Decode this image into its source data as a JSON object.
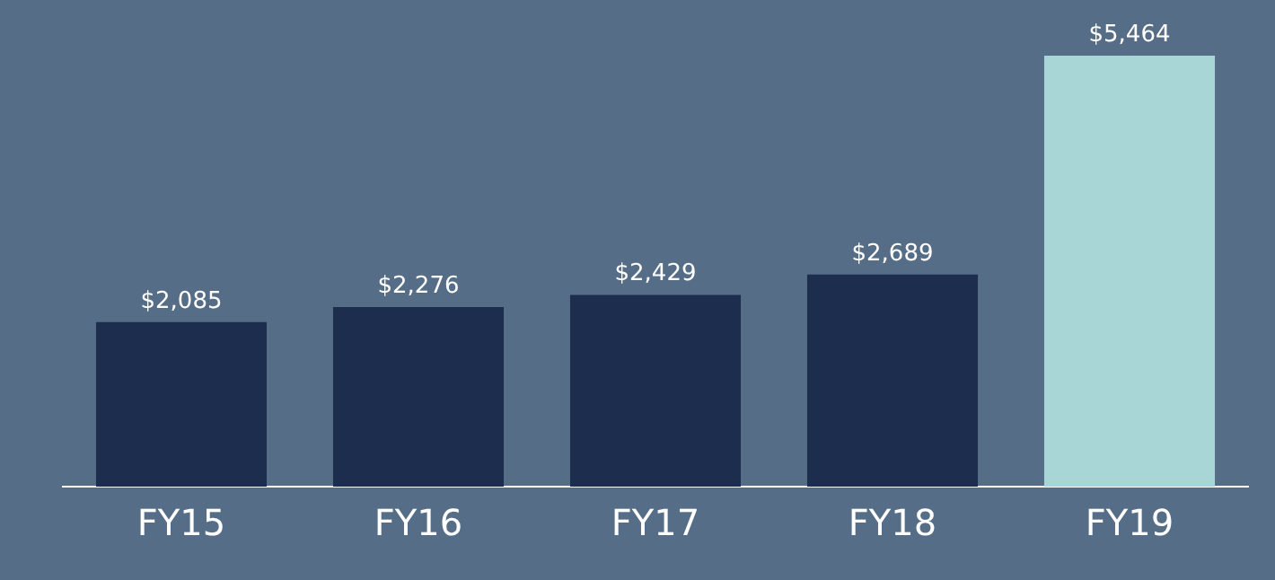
{
  "chart_data": {
    "type": "bar",
    "relative": false,
    "categories": [
      "FY15",
      "FY16",
      "FY17",
      "FY18",
      "FY19"
    ],
    "values": [
      2085,
      2276,
      2429,
      2689,
      5464
    ],
    "colors": [
      "#1c2d4e",
      "#1c2d4e",
      "#1c2d4e",
      "#1c2d4e",
      "#a8d5d6"
    ],
    "value_labels": [
      "$2,085",
      "$2,276",
      "$2,429",
      "$2,689",
      "$5,464"
    ],
    "grid": false,
    "legend": false
  }
}
